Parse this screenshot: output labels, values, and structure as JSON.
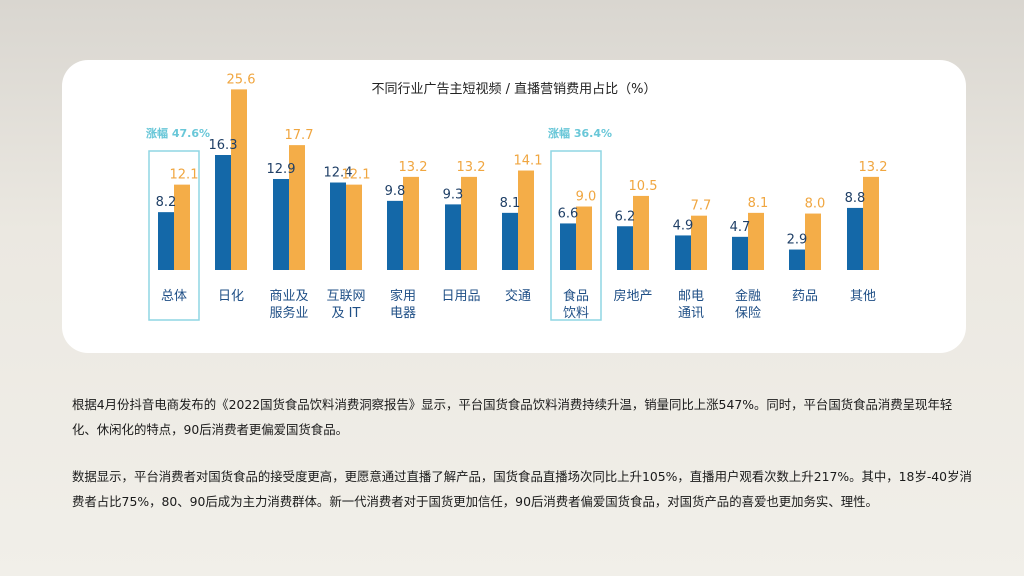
{
  "colors": {
    "series_a": "#1468a8",
    "series_b": "#f4ad48",
    "highlight": "#8fd6e3",
    "increase_text": "#69c7d8"
  },
  "chart_data": {
    "type": "bar",
    "title": "不同行业广告主短视频 / 直播营销费用占比（%）",
    "categories": [
      "总体",
      "日化",
      "商业及\n服务业",
      "互联网\n及 IT",
      "家用\n电器",
      "日用品",
      "交通",
      "食品\n饮料",
      "房地产",
      "邮电\n通讯",
      "金融\n保险",
      "药品",
      "其他"
    ],
    "series": [
      {
        "values": [
          8.2,
          16.3,
          12.9,
          12.4,
          9.8,
          9.3,
          8.1,
          6.6,
          6.2,
          4.9,
          4.7,
          2.9,
          8.8
        ]
      },
      {
        "values": [
          12.1,
          25.6,
          17.7,
          12.1,
          13.2,
          13.2,
          14.1,
          9.0,
          10.5,
          7.7,
          8.1,
          8.0,
          13.2
        ]
      }
    ],
    "value_labels": [
      [
        "8.2",
        "16.3",
        "12.9",
        "12.4",
        "9.8",
        "9.3",
        "8.1",
        "6.6",
        "6.2",
        "4.9",
        "4.7",
        "2.9",
        "8.8"
      ],
      [
        "12.1",
        "25.6",
        "17.7",
        "12.1",
        "13.2",
        "13.2",
        "14.1",
        "9.0",
        "10.5",
        "7.7",
        "8.1",
        "8.0",
        "13.2"
      ]
    ],
    "annotations": [
      {
        "category_index": 0,
        "text": "涨幅 47.6%"
      },
      {
        "category_index": 7,
        "text": "涨幅 36.4%"
      }
    ],
    "ylim": [
      0,
      26
    ],
    "grid": false
  },
  "paragraphs": [
    "根据4月份抖音电商发布的《2022国货食品饮料消费洞察报告》显示，平台国货食品饮料消费持续升温，销量同比上涨547%。同时，平台国货食品消费呈现年轻化、休闲化的特点，90后消费者更偏爱国货食品。",
    "数据显示，平台消费者对国货食品的接受度更高，更愿意通过直播了解产品，国货食品直播场次同比上升105%，直播用户观看次数上升217%。其中，18岁-40岁消费者占比75%，80、90后成为主力消费群体。新一代消费者对于国货更加信任，90后消费者偏爱国货食品，对国货产品的喜爱也更加务实、理性。"
  ]
}
